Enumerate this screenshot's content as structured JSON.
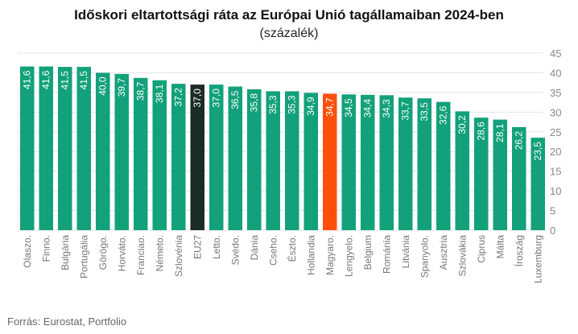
{
  "header": {
    "title": "Időskori eltartottsági ráta az Európai Unió tagállamaiban 2024-ben",
    "subtitle": "(százalék)"
  },
  "footer": {
    "source": "Forrás: Eurostat, Portfolio"
  },
  "chart_data": {
    "type": "bar",
    "title": "Időskori eltartottsági ráta az Európai Unió tagállamaiban 2024-ben",
    "subtitle": "(százalék)",
    "xlabel": "",
    "ylabel": "",
    "ylim": [
      0,
      45
    ],
    "yticks": [
      0,
      5,
      10,
      15,
      20,
      25,
      30,
      35,
      40,
      45
    ],
    "grid": true,
    "categories": [
      "Olaszo.",
      "Finno.",
      "Bulgária",
      "Portugália",
      "Görögo.",
      "Horváto.",
      "Franciao.",
      "Németo.",
      "Szlovénia",
      "EU27",
      "Letto.",
      "Svédo.",
      "Dánia",
      "Cseho.",
      "Észto.",
      "Hollandia",
      "Magyaro.",
      "Lengyelo.",
      "Belgium",
      "Románia",
      "Litvánia",
      "Spanyolo.",
      "Ausztria",
      "Szlovákia",
      "Ciprus",
      "Málta",
      "Íroszág",
      "Luxemburg"
    ],
    "values": [
      41.6,
      41.6,
      41.5,
      41.5,
      40.0,
      39.7,
      38.7,
      38.1,
      37.2,
      37.0,
      37.0,
      36.5,
      35.8,
      35.3,
      35.3,
      34.9,
      34.7,
      34.5,
      34.4,
      34.3,
      33.7,
      33.5,
      32.6,
      30.2,
      28.6,
      28.1,
      26.2,
      23.5
    ],
    "value_labels": [
      "41,6",
      "41,6",
      "41,5",
      "41,5",
      "40,0",
      "39,7",
      "38,7",
      "38,1",
      "37,2",
      "37,0",
      "37,0",
      "36,5",
      "35,8",
      "35,3",
      "35,3",
      "34,9",
      "34,7",
      "34,5",
      "34,4",
      "34,3",
      "33,7",
      "33,5",
      "32,6",
      "30,2",
      "28,6",
      "28,1",
      "26,2",
      "23,5"
    ],
    "colors": {
      "default": "#12a17b",
      "highlight_eu": "#1b2b25",
      "highlight_hu": "#ff4f0a",
      "grid": "#e4e4e4",
      "tick_text": "#888888",
      "category_text": "#777777",
      "label_text": "#ffffff"
    },
    "highlights": {
      "EU27": "highlight_eu",
      "Magyaro.": "highlight_hu"
    }
  }
}
